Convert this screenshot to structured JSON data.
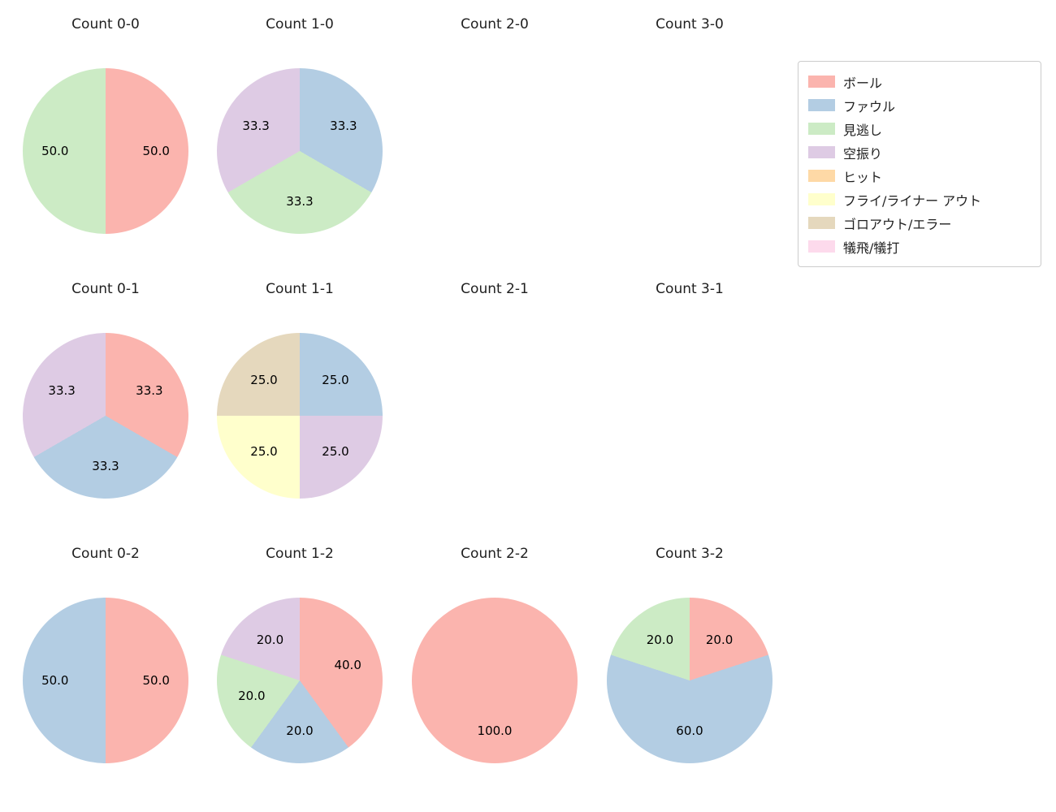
{
  "figure_title": "",
  "legend": {
    "items": [
      {
        "label": "ボール",
        "color": "#fbb4ae"
      },
      {
        "label": "ファウル",
        "color": "#b3cde3"
      },
      {
        "label": "見逃し",
        "color": "#ccebc5"
      },
      {
        "label": "空振り",
        "color": "#decbe4"
      },
      {
        "label": "ヒット",
        "color": "#fed9a6"
      },
      {
        "label": "フライ/ライナー アウト",
        "color": "#ffffcc"
      },
      {
        "label": "ゴロアウト/エラー",
        "color": "#e5d8bd"
      },
      {
        "label": "犠飛/犠打",
        "color": "#fddaec"
      }
    ]
  },
  "chart_data": {
    "type": "pie",
    "description": "Grid of pie charts of pitch outcomes by ball-strike count, percentages labeled inside slices, slices drawn clockwise from 12 o'clock",
    "colors": {
      "ボール": "#fbb4ae",
      "ファウル": "#b3cde3",
      "見逃し": "#ccebc5",
      "空振り": "#decbe4",
      "ヒット": "#fed9a6",
      "フライ/ライナー アウト": "#ffffcc",
      "ゴロアウト/エラー": "#e5d8bd",
      "犠飛/犠打": "#fddaec"
    },
    "charts": [
      {
        "title": "Count 0-0",
        "row": 0,
        "col": 0,
        "slices": [
          {
            "label": "ボール",
            "value": 50.0
          },
          {
            "label": "見逃し",
            "value": 50.0
          }
        ]
      },
      {
        "title": "Count 1-0",
        "row": 0,
        "col": 1,
        "slices": [
          {
            "label": "ファウル",
            "value": 33.3
          },
          {
            "label": "見逃し",
            "value": 33.3
          },
          {
            "label": "空振り",
            "value": 33.3
          }
        ]
      },
      {
        "title": "Count 2-0",
        "row": 0,
        "col": 2,
        "slices": []
      },
      {
        "title": "Count 3-0",
        "row": 0,
        "col": 3,
        "slices": []
      },
      {
        "title": "Count 0-1",
        "row": 1,
        "col": 0,
        "slices": [
          {
            "label": "ボール",
            "value": 33.3
          },
          {
            "label": "ファウル",
            "value": 33.3
          },
          {
            "label": "空振り",
            "value": 33.3
          }
        ]
      },
      {
        "title": "Count 1-1",
        "row": 1,
        "col": 1,
        "slices": [
          {
            "label": "ファウル",
            "value": 25.0
          },
          {
            "label": "空振り",
            "value": 25.0
          },
          {
            "label": "フライ/ライナー アウト",
            "value": 25.0
          },
          {
            "label": "ゴロアウト/エラー",
            "value": 25.0
          }
        ]
      },
      {
        "title": "Count 2-1",
        "row": 1,
        "col": 2,
        "slices": []
      },
      {
        "title": "Count 3-1",
        "row": 1,
        "col": 3,
        "slices": []
      },
      {
        "title": "Count 0-2",
        "row": 2,
        "col": 0,
        "slices": [
          {
            "label": "ボール",
            "value": 50.0
          },
          {
            "label": "ファウル",
            "value": 50.0
          }
        ]
      },
      {
        "title": "Count 1-2",
        "row": 2,
        "col": 1,
        "slices": [
          {
            "label": "ボール",
            "value": 40.0
          },
          {
            "label": "ファウル",
            "value": 20.0
          },
          {
            "label": "見逃し",
            "value": 20.0
          },
          {
            "label": "空振り",
            "value": 20.0
          }
        ]
      },
      {
        "title": "Count 2-2",
        "row": 2,
        "col": 2,
        "slices": [
          {
            "label": "ボール",
            "value": 100.0
          }
        ]
      },
      {
        "title": "Count 3-2",
        "row": 2,
        "col": 3,
        "slices": [
          {
            "label": "ボール",
            "value": 20.0
          },
          {
            "label": "ファウル",
            "value": 60.0
          },
          {
            "label": "見逃し",
            "value": 20.0
          }
        ]
      }
    ]
  }
}
